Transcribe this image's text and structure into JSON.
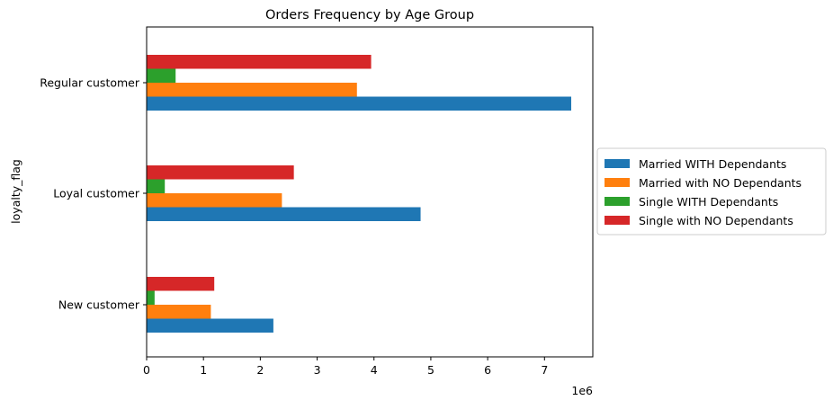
{
  "chart_data": {
    "type": "bar",
    "orientation": "horizontal",
    "title": "Orders Frequency by Age Group",
    "xlabel": "",
    "ylabel": "loyalty_flag",
    "x_multiplier_label": "1e6",
    "categories": [
      "New customer",
      "Loyal customer",
      "Regular customer"
    ],
    "x_ticks": [
      0,
      1,
      2,
      3,
      4,
      5,
      6,
      7
    ],
    "xlim": [
      0,
      7.85
    ],
    "grid": false,
    "legend_position": "right",
    "series": [
      {
        "name": "Married WITH Dependants",
        "color": "#1f77b4",
        "values": [
          2.23,
          4.82,
          7.47
        ]
      },
      {
        "name": "Married with NO Dependants",
        "color": "#ff7f0e",
        "values": [
          1.13,
          2.38,
          3.7
        ]
      },
      {
        "name": "Single WITH Dependants",
        "color": "#2ca02c",
        "values": [
          0.14,
          0.32,
          0.51
        ]
      },
      {
        "name": "Single with NO Dependants",
        "color": "#d62728",
        "values": [
          1.19,
          2.59,
          3.95
        ]
      }
    ]
  }
}
